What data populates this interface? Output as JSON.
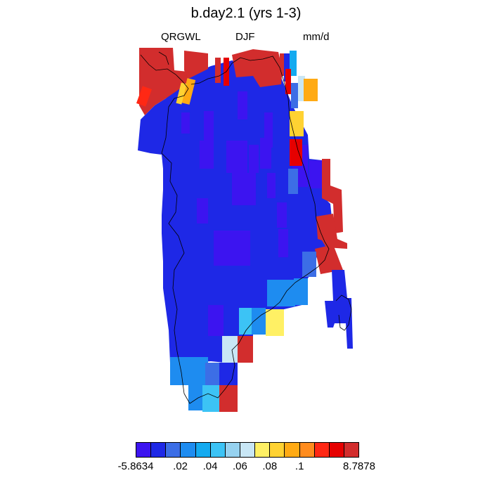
{
  "title": "b.day2.1 (yrs 1-3)",
  "subtitle_left": "QRGWL",
  "subtitle_center": "DJF",
  "subtitle_right": "mm/d",
  "colors": {
    "c1": "#3c14f0",
    "c2": "#1e28e6",
    "c3": "#3c6ee6",
    "c4": "#1e8cf0",
    "c5": "#14aaf0",
    "c6": "#3cc3f5",
    "c7": "#96d2f0",
    "c8": "#c8e6f5",
    "c9": "#fff064",
    "c10": "#ffd232",
    "c11": "#ffaa14",
    "c12": "#ff8c1e",
    "c13": "#ff2814",
    "c14": "#e60000",
    "c15": "#d22d2d"
  },
  "colorbar": {
    "colors": [
      "#3c14f0",
      "#1e28e6",
      "#3c6ee6",
      "#1e8cf0",
      "#14aaf0",
      "#3cc3f5",
      "#96d2f0",
      "#c8e6f5",
      "#fff064",
      "#ffd232",
      "#ffaa14",
      "#ff8c1e",
      "#ff2814",
      "#e60000",
      "#d22d2d"
    ],
    "labels": [
      {
        "text": "-5.8634",
        "boundary": 0
      },
      {
        "text": ".02",
        "boundary": 3
      },
      {
        "text": ".04",
        "boundary": 5
      },
      {
        "text": ".06",
        "boundary": 7
      },
      {
        "text": ".08",
        "boundary": 9
      },
      {
        "text": ".1",
        "boundary": 11
      },
      {
        "text": "8.7878",
        "boundary": 15
      }
    ]
  }
}
